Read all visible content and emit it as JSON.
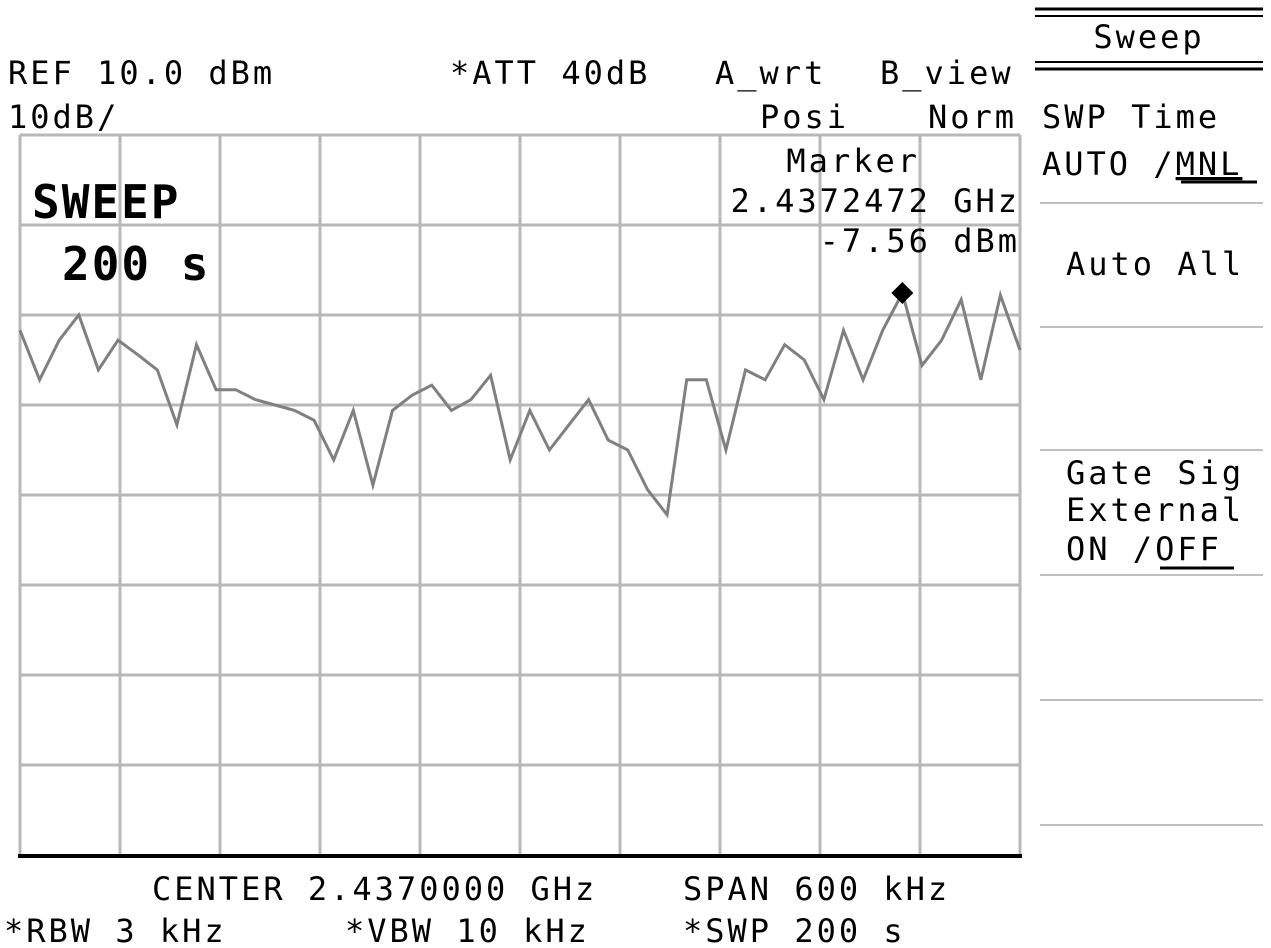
{
  "header": {
    "ref": "REF 10.0 dBm",
    "att": "*ATT 40dB",
    "trace_a": "A_wrt",
    "trace_b": "B_view",
    "scale": "10dB/",
    "detector_a": "Posi",
    "detector_b": "Norm"
  },
  "marker": {
    "title": "Marker",
    "frequency": "2.4372472 GHz",
    "level": "-7.56 dBm"
  },
  "sweep_readout": {
    "title": "SWEEP",
    "value": "200 s"
  },
  "footer": {
    "center": "CENTER 2.4370000 GHz",
    "span": "SPAN 600 kHz",
    "rbw": "*RBW 3 kHz",
    "vbw": "*VBW 10 kHz",
    "swp": "*SWP 200 s"
  },
  "menu": {
    "title": "Sweep",
    "softkeys": [
      {
        "lines": [
          "SWP Time"
        ],
        "parts": [
          "AUTO /",
          "MNL"
        ]
      },
      {
        "lines": [
          "Auto All"
        ]
      },
      {
        "lines": [
          "Gate Sig",
          "External"
        ],
        "parts": [
          "ON /",
          "OFF"
        ]
      }
    ]
  },
  "trace": {
    "ylim": [
      -70,
      10
    ],
    "marker_index": 45,
    "values": [
      -11.7,
      -17.2,
      -12.8,
      -10.0,
      -16.1,
      -12.8,
      -14.4,
      -16.1,
      -22.2,
      -13.3,
      -18.3,
      -18.3,
      -19.4,
      -20.0,
      -20.6,
      -21.7,
      -26.1,
      -20.6,
      -28.9,
      -20.6,
      -18.9,
      -17.8,
      -20.6,
      -19.4,
      -16.7,
      -26.1,
      -20.6,
      -25.0,
      -22.2,
      -19.4,
      -23.9,
      -25.0,
      -29.4,
      -32.2,
      -17.2,
      -17.2,
      -25.0,
      -16.1,
      -17.2,
      -13.3,
      -15.0,
      -19.4,
      -11.7,
      -17.2,
      -11.7,
      -7.56,
      -15.6,
      -12.8,
      -8.3,
      -17.2,
      -7.8,
      -13.9
    ]
  }
}
